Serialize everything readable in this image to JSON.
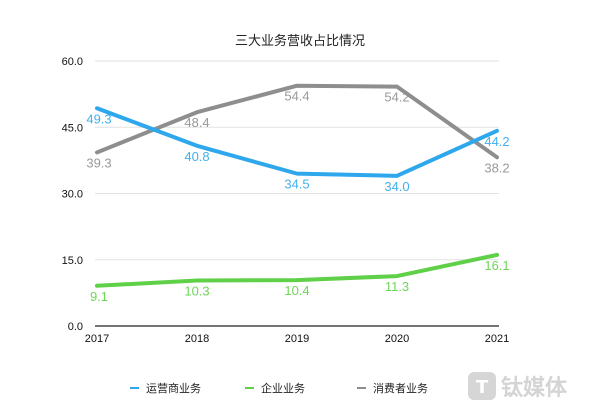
{
  "chart_data": {
    "type": "line",
    "title": "三大业务营收占比情况",
    "categories": [
      "2017",
      "2018",
      "2019",
      "2020",
      "2021"
    ],
    "ylim": [
      0,
      60
    ],
    "yticks": [
      "0.0",
      "15.0",
      "30.0",
      "45.0",
      "60.0"
    ],
    "grid": true,
    "legend_position": "bottom",
    "series": [
      {
        "name": "运营商业务",
        "color": "#2ea7ec",
        "values": [
          49.3,
          40.8,
          34.5,
          34.0,
          44.2
        ],
        "labels": [
          "49.3",
          "40.8",
          "34.5",
          "34.0",
          "44.2"
        ]
      },
      {
        "name": "企业业务",
        "color": "#5fd048",
        "values": [
          9.1,
          10.3,
          10.4,
          11.3,
          16.1
        ],
        "labels": [
          "9.1",
          "10.3",
          "10.4",
          "11.3",
          "16.1"
        ]
      },
      {
        "name": "消费者业务",
        "color": "#8e8e8e",
        "values": [
          39.3,
          48.4,
          54.4,
          54.2,
          38.2
        ],
        "labels": [
          "39.3",
          "48.4",
          "54.4",
          "54.2",
          "38.2"
        ]
      }
    ]
  },
  "watermark": "钛媒体"
}
